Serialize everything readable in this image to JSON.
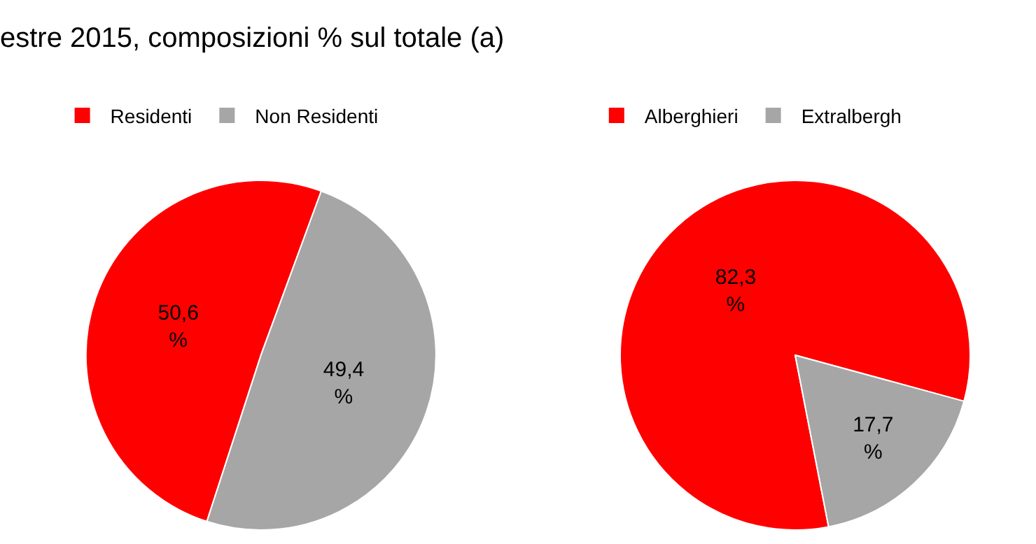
{
  "chart_data": [
    {
      "type": "pie",
      "title": "estre 2015, composizioni % sul totale (a)",
      "categories": [
        "Residenti",
        "Non Residenti"
      ],
      "values": [
        50.6,
        49.4
      ],
      "colors": [
        "#ff0000",
        "#a6a6a6"
      ],
      "value_labels": [
        "50,6 %",
        "49,4 %"
      ],
      "legend": "top"
    },
    {
      "type": "pie",
      "categories": [
        "Alberghieri",
        "Extralbergh"
      ],
      "values": [
        82.3,
        17.7
      ],
      "colors": [
        "#ff0000",
        "#a6a6a6"
      ],
      "value_labels": [
        "82,3 %",
        "17,7 %"
      ],
      "legend": "top"
    }
  ]
}
